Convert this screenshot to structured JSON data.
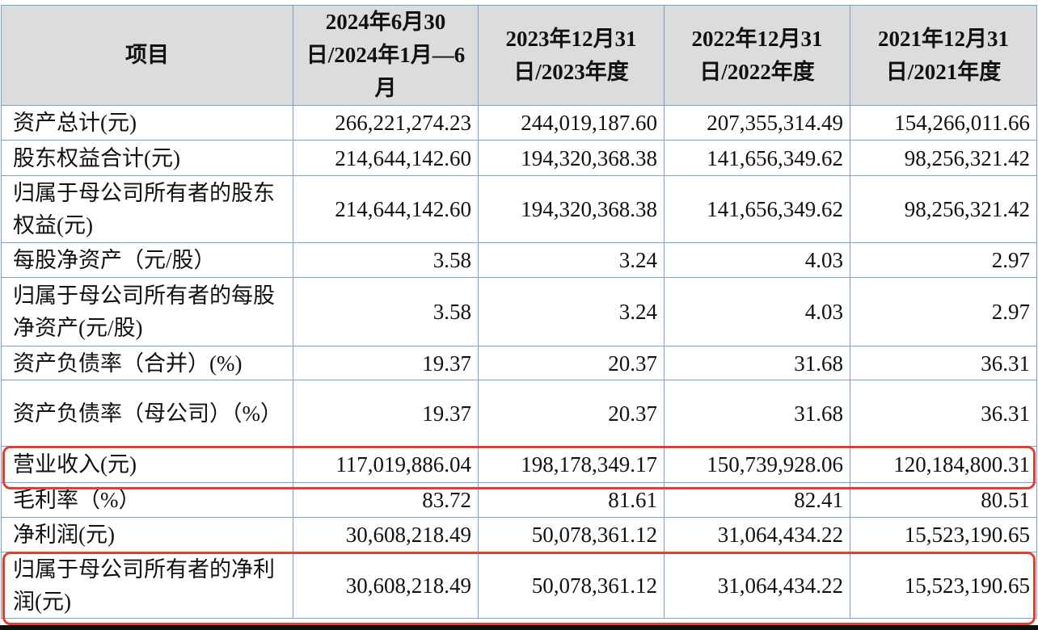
{
  "table": {
    "headers": [
      "项目",
      "2024年6月30日/2024年1月—6月",
      "2023年12月31日/2023年度",
      "2022年12月31日/2022年度",
      "2021年12月31日/2021年度"
    ],
    "rows": [
      {
        "label": "资产总计(元)",
        "values": [
          "266,221,274.23",
          "244,019,187.60",
          "207,355,314.49",
          "154,266,011.66"
        ]
      },
      {
        "label": "股东权益合计(元)",
        "values": [
          "214,644,142.60",
          "194,320,368.38",
          "141,656,349.62",
          "98,256,321.42"
        ]
      },
      {
        "label": "归属于母公司所有者的股东权益(元)",
        "values": [
          "214,644,142.60",
          "194,320,368.38",
          "141,656,349.62",
          "98,256,321.42"
        ]
      },
      {
        "label": "每股净资产（元/股）",
        "values": [
          "3.58",
          "3.24",
          "4.03",
          "2.97"
        ]
      },
      {
        "label": "归属于母公司所有者的每股净资产(元/股)",
        "values": [
          "3.58",
          "3.24",
          "4.03",
          "2.97"
        ]
      },
      {
        "label": "资产负债率（合并）(%)",
        "values": [
          "19.37",
          "20.37",
          "31.68",
          "36.31"
        ]
      },
      {
        "label": "资产负债率（母公司）（%）",
        "values": [
          "19.37",
          "20.37",
          "31.68",
          "36.31"
        ]
      },
      {
        "label": "营业收入(元)",
        "values": [
          "117,019,886.04",
          "198,178,349.17",
          "150,739,928.06",
          "120,184,800.31"
        ]
      },
      {
        "label": "毛利率（%）",
        "values": [
          "83.72",
          "81.61",
          "82.41",
          "80.51"
        ]
      },
      {
        "label": "净利润(元)",
        "values": [
          "30,608,218.49",
          "50,078,361.12",
          "31,064,434.22",
          "15,523,190.65"
        ]
      },
      {
        "label": "归属于母公司所有者的净利润(元)",
        "values": [
          "30,608,218.49",
          "50,078,361.12",
          "31,064,434.22",
          "15,523,190.65"
        ]
      }
    ]
  },
  "highlight_color": "#e0412f"
}
